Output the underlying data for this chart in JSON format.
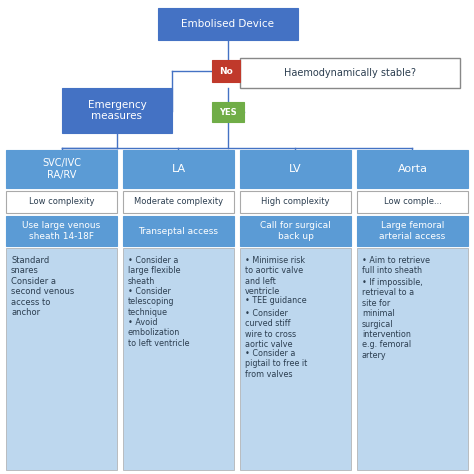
{
  "bg_color": "#ffffff",
  "blue_box_color": "#4472C4",
  "light_blue_box_color": "#5B9BD5",
  "light_bg_color": "#BDD7EE",
  "red_btn_color": "#C0392B",
  "green_btn_color": "#70AD47",
  "line_color": "#4472C4",
  "text_white": "#ffffff",
  "text_dark": "#2C3E50",
  "title": "Embolised Device",
  "question": "Haemodynamically stable?",
  "no_label": "No",
  "yes_label": "YES",
  "emergency": "Emergency\nmeasures",
  "headers1": [
    "SVC/IVC\nRA/RV",
    "LA",
    "LV",
    "Aorta"
  ],
  "headers2": [
    "Low complexity",
    "Moderate complexity",
    "High complexity",
    "Low comple..."
  ],
  "subheaders": [
    "Use large venous\nsheath 14-18F",
    "Transeptal access",
    "Call for surgical\nback up",
    "Large femoral\narterial access"
  ],
  "col0_text": "Standard\nsnares\nConsider a\nsecond venous\naccess to\nanchor",
  "col1_bullets": [
    "Consider a\nlarge flexible\nsheath",
    "Consider\ntelescoping\ntechnique",
    "Avoid\nembolization\nto left ventricle"
  ],
  "col2_bullets": [
    "Minimise risk\nto aortic valve\nand left\nventricle",
    "TEE guidance",
    "Consider\ncurved stiff\nwire to cross\naortic valve",
    "Consider a\npigtail to free it\nfrom valves"
  ],
  "col3_bullets": [
    "Aim to retrieve\nfull into sheath",
    "If impossible,\nretrieval to a\nsite for\nminimal\nsurgical\nintervention\ne.g. femoral\nartery"
  ]
}
